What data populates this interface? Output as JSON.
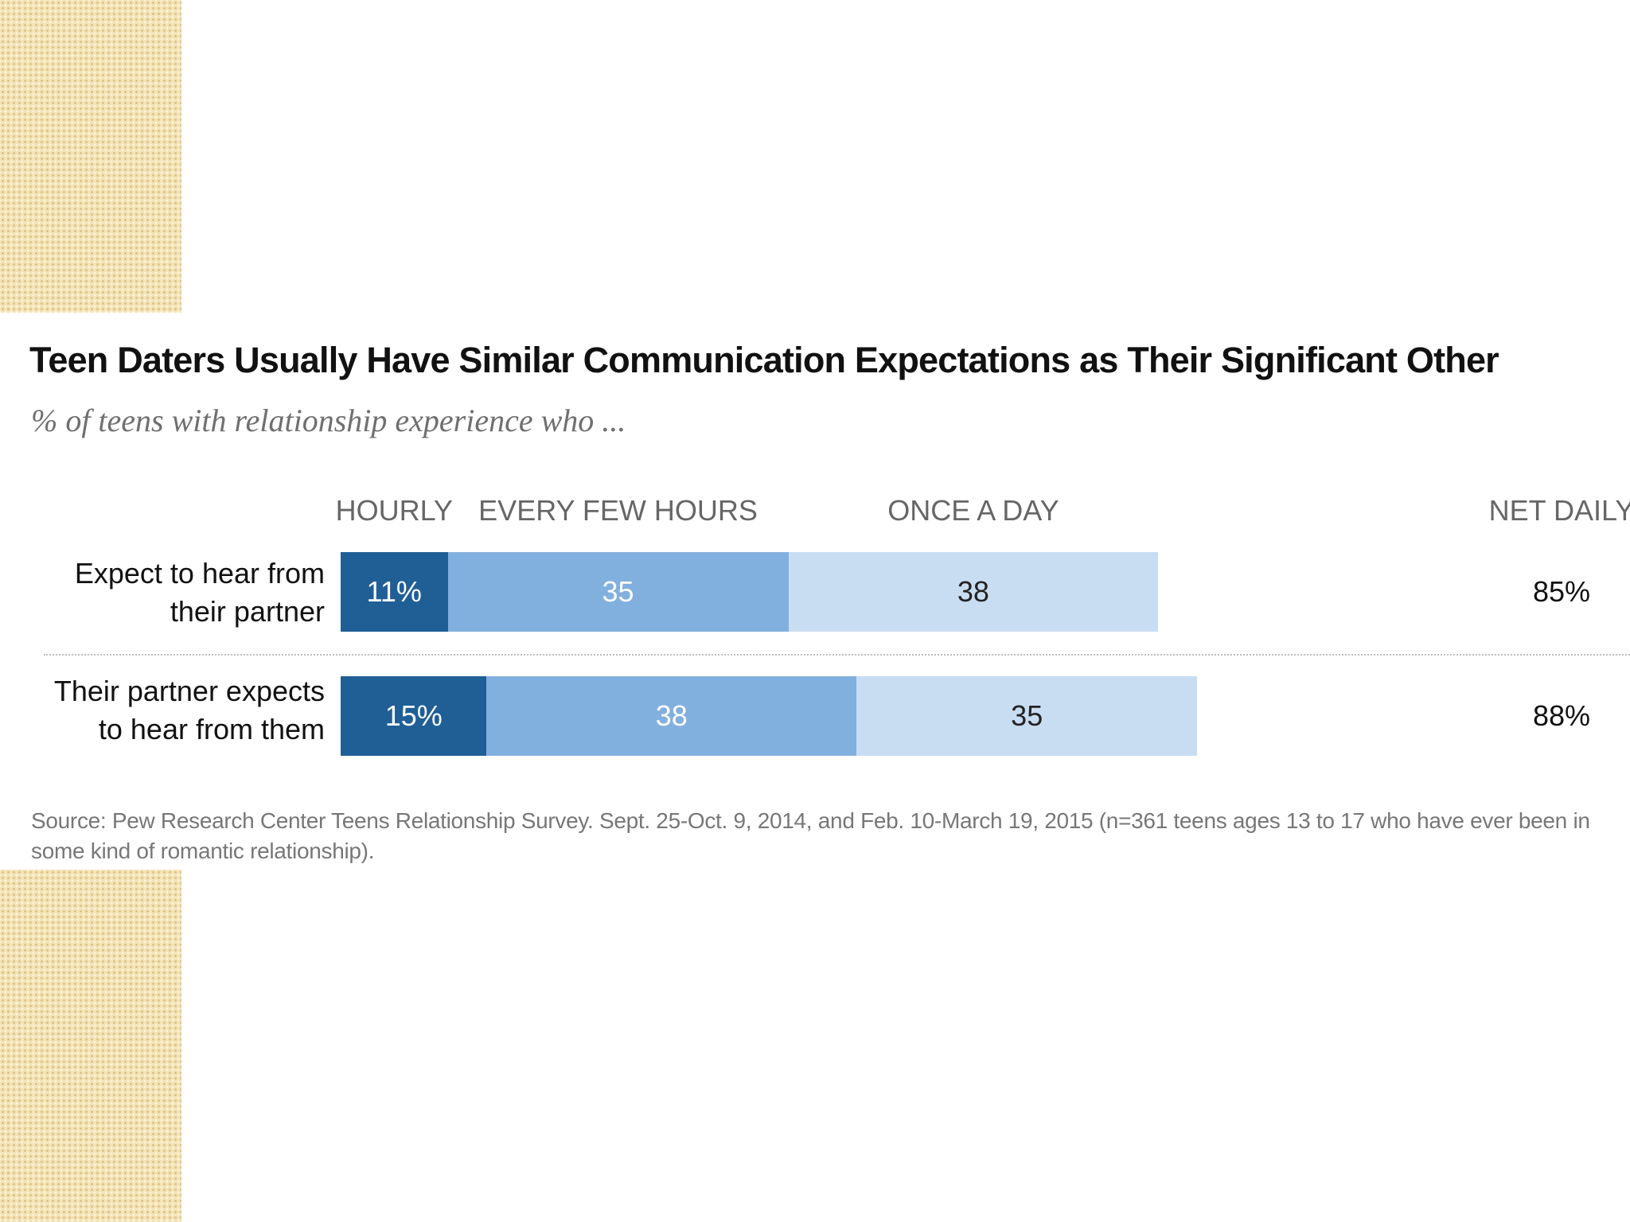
{
  "chart_data": {
    "type": "bar",
    "orientation": "horizontal",
    "stacked": true,
    "title": "Teen Daters Usually Have Similar Communication Expectations as Their Significant Other",
    "subtitle": "% of teens with relationship experience who ...",
    "columns": [
      "HOURLY",
      "EVERY FEW HOURS",
      "ONCE A DAY",
      "NET DAILY"
    ],
    "categories": [
      [
        "Expect to hear from",
        "their partner"
      ],
      [
        "Their partner expects",
        "to hear from them"
      ]
    ],
    "series": [
      {
        "name": "HOURLY",
        "values": [
          11,
          15
        ],
        "labels": [
          "11%",
          "15%"
        ],
        "color": "#1f5f96",
        "text_color": "#ffffff"
      },
      {
        "name": "EVERY FEW HOURS",
        "values": [
          35,
          38
        ],
        "labels": [
          "35",
          "38"
        ],
        "color": "#82b0de",
        "text_color": "#ffffff"
      },
      {
        "name": "ONCE A DAY",
        "values": [
          38,
          35
        ],
        "labels": [
          "38",
          "35"
        ],
        "color": "#c9ddf2",
        "text_color": "#222222"
      }
    ],
    "net": {
      "name": "NET DAILY",
      "values": [
        85,
        88
      ],
      "labels": [
        "85%",
        "88%"
      ]
    },
    "xlim": [
      0,
      100
    ],
    "source": "Source:  Pew Research Center Teens Relationship Survey. Sept. 25-Oct. 9, 2014, and Feb. 10-March 19, 2015 (n=361 teens ages 13 to 17 who have ever been in some kind of romantic relationship)."
  }
}
